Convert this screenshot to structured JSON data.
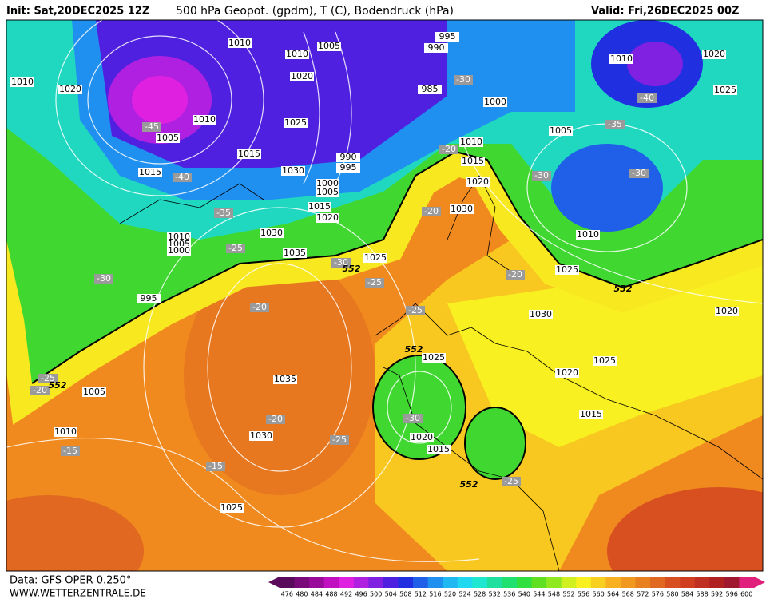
{
  "header": {
    "init": "Init: Sat,20DEC2025 12Z",
    "title": "500 hPa Geopot. (gpdm), T (C), Bodendruck (hPa)",
    "valid": "Valid: Fri,26DEC2025 00Z"
  },
  "footer": {
    "data": "Data: GFS OPER 0.250°",
    "site": "WWW.WETTERZENTRALE.DE"
  },
  "legend": {
    "ticks": [
      476,
      480,
      484,
      488,
      492,
      496,
      500,
      504,
      508,
      512,
      516,
      520,
      524,
      528,
      532,
      536,
      540,
      544,
      548,
      552,
      556,
      560,
      564,
      568,
      572,
      576,
      580,
      584,
      588,
      592,
      596,
      600
    ],
    "colors": [
      "#5a0a5a",
      "#7a0a7a",
      "#9a0a9a",
      "#c010c0",
      "#e020e0",
      "#b020e0",
      "#8020e0",
      "#5020e0",
      "#2030e0",
      "#2060e8",
      "#2090f0",
      "#20b8f0",
      "#20d8f0",
      "#20e8d0",
      "#20e0a0",
      "#20e070",
      "#30e040",
      "#60e020",
      "#90e820",
      "#d0f020",
      "#f8f020",
      "#f8d020",
      "#f8b020",
      "#f09820",
      "#e88020",
      "#e06820",
      "#d85020",
      "#d04020",
      "#c03020",
      "#b02020",
      "#a01830",
      "#e0207c"
    ]
  },
  "map": {
    "isobar_labels": [
      1010,
      1005,
      995,
      990,
      1010,
      1010,
      1020,
      1020,
      985,
      1000,
      1010,
      1005,
      1025,
      1015,
      1030,
      990,
      995,
      1000,
      1005,
      1015,
      1020,
      1030,
      1010,
      1015,
      1020,
      1030,
      1010,
      1005,
      1000,
      1035,
      1025,
      1005,
      1010,
      1020,
      1025,
      1010,
      1025,
      1030,
      1020,
      1025,
      1020,
      1025,
      1015,
      1020,
      1015,
      1035,
      1030,
      1005,
      1010,
      1025,
      1015,
      995
    ],
    "temperature_labels": [
      -45,
      -40,
      -35,
      -25,
      -30,
      -30,
      -40,
      -35,
      -30,
      -30,
      -20,
      -20,
      -30,
      -25,
      -25,
      -20,
      -20,
      -25,
      -15,
      -15,
      -20,
      -25,
      -30,
      -25,
      -20
    ],
    "contour_552_labels": [
      552,
      552,
      552,
      552,
      552
    ]
  }
}
